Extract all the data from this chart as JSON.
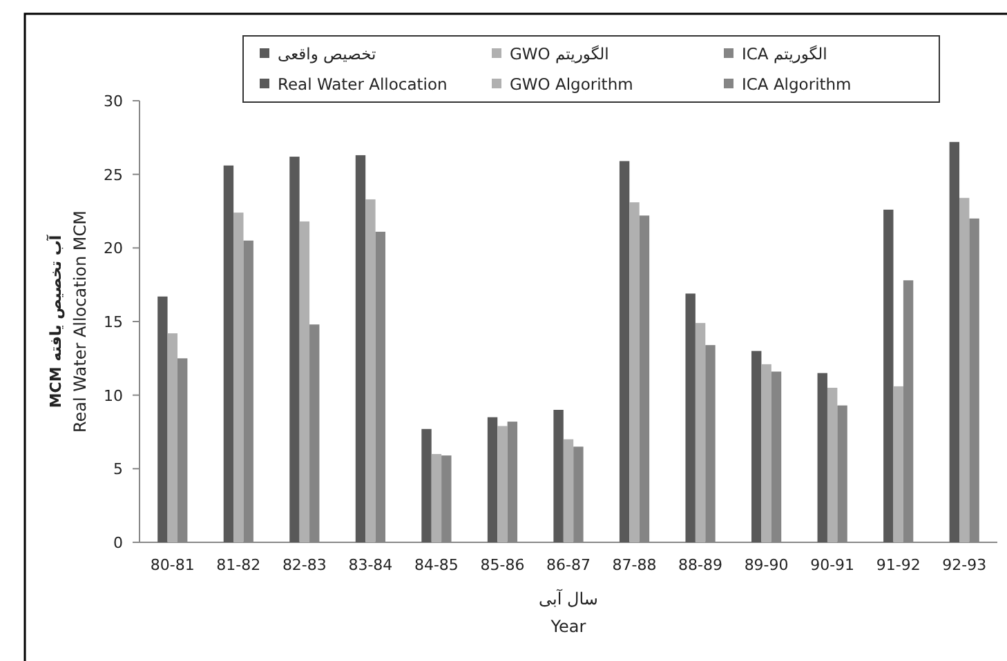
{
  "chart_data": {
    "type": "bar",
    "xlabel": "سال آبی\nYear",
    "ylabel": "آب تخصیص یافته MCM\nReal Water Allocation MCM",
    "categories": [
      "80-81",
      "81-82",
      "82-83",
      "83-84",
      "84-85",
      "85-86",
      "86-87",
      "87-88",
      "88-89",
      "89-90",
      "90-91",
      "91-92",
      "92-93"
    ],
    "series": [
      {
        "name": "تخصیص واقعی\nReal Water Allocation",
        "color": "#595959",
        "values": [
          16.7,
          25.6,
          26.2,
          26.3,
          7.7,
          8.5,
          9.0,
          25.9,
          16.9,
          13.0,
          11.5,
          22.6,
          27.2
        ]
      },
      {
        "name": "الگوریتم GWO\nGWO Algorithm",
        "color": "#b0b0b0",
        "values": [
          14.2,
          22.4,
          21.8,
          23.3,
          6.0,
          7.9,
          7.0,
          23.1,
          14.9,
          12.1,
          10.5,
          10.6,
          23.4
        ]
      },
      {
        "name": "الگوریتم ICA\nICA Algorithm",
        "color": "#858585",
        "values": [
          12.5,
          20.5,
          14.8,
          21.1,
          5.9,
          8.2,
          6.5,
          22.2,
          13.4,
          11.6,
          9.3,
          17.8,
          22.0
        ]
      }
    ],
    "ylim": [
      0,
      30
    ],
    "yticks": [
      0,
      5,
      10,
      15,
      20,
      25,
      30
    ],
    "grid": false,
    "legend": "top"
  }
}
